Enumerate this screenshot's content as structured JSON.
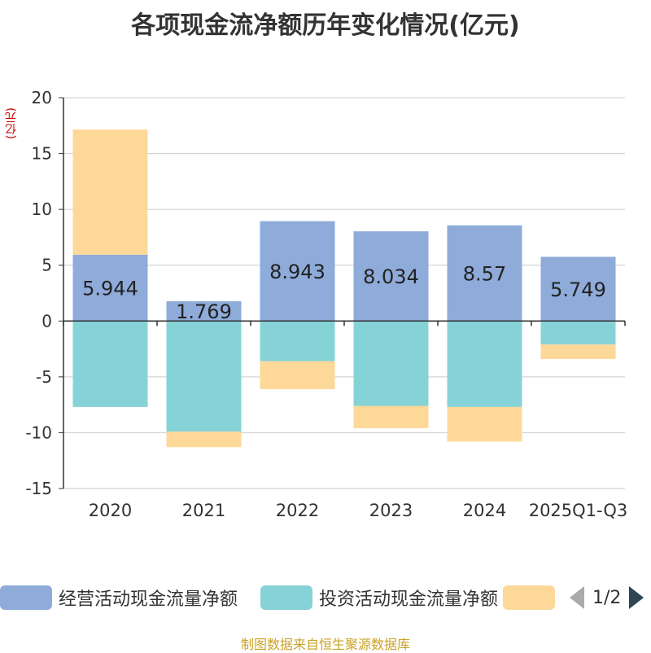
{
  "title": "各项现金流净额历年变化情况(亿元)",
  "unit_label": "(亿元)",
  "footer": "制图数据来自恒生聚源数据库",
  "pager": {
    "text": "1/2"
  },
  "colors": {
    "operating": "#8eabd9",
    "investing": "#86d3d7",
    "financing": "#fdd898",
    "axis": "#333333",
    "grid": "#cccccc"
  },
  "chart_data": {
    "type": "bar",
    "stacked": true,
    "title": "各项现金流净额历年变化情况(亿元)",
    "ylabel": "(亿元)",
    "ylim": [
      -15,
      20
    ],
    "yticks": [
      20,
      15,
      10,
      5,
      0,
      -5,
      -10,
      -15
    ],
    "categories": [
      "2020",
      "2021",
      "2022",
      "2023",
      "2024",
      "2025Q1-Q3"
    ],
    "series": [
      {
        "name": "经营活动现金流量净额",
        "values": [
          5.944,
          1.769,
          8.943,
          8.034,
          8.57,
          5.749
        ],
        "labels": [
          "5.944",
          "1.769",
          "8.943",
          "8.034",
          "8.57",
          "5.749"
        ]
      },
      {
        "name": "投资活动现金流量净额",
        "values": [
          -7.7,
          -9.9,
          -3.6,
          -7.6,
          -7.7,
          -2.1
        ]
      },
      {
        "name": "",
        "values": [
          11.2,
          -1.4,
          -2.5,
          -2.0,
          -3.1,
          -1.3
        ]
      }
    ],
    "legend": [
      "经营活动现金流量净额",
      "投资活动现金流量净额",
      ""
    ]
  }
}
